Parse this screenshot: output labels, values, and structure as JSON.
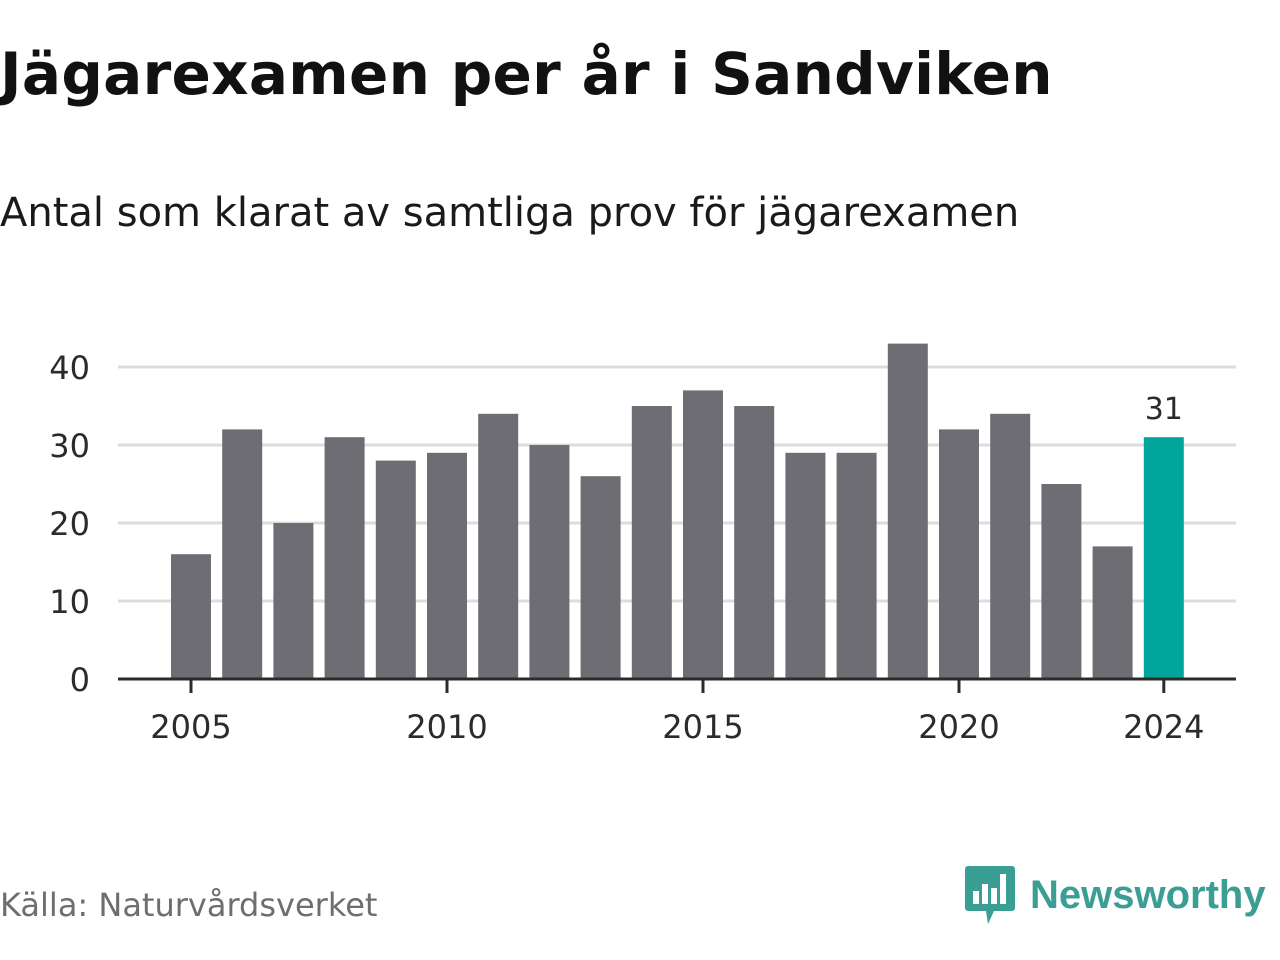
{
  "header": {
    "title": "Jägarexamen per år i Sandviken",
    "subtitle": "Antal som klarat av samtliga prov för jägarexamen"
  },
  "footer": {
    "source": "Källa: Naturvårdsverket",
    "brand": "Newsworthy",
    "brand_icon": "newsworthy-logo-icon"
  },
  "colors": {
    "bar": "#6e6d73",
    "highlight": "#00a69c",
    "grid": "#dcdcdc",
    "axis": "#2b2b2b",
    "brand": "#3a9e94"
  },
  "chart_data": {
    "type": "bar",
    "title": "Jägarexamen per år i Sandviken",
    "subtitle": "Antal som klarat av samtliga prov för jägarexamen",
    "xlabel": "",
    "ylabel": "",
    "categories": [
      2005,
      2006,
      2007,
      2008,
      2009,
      2010,
      2011,
      2012,
      2013,
      2014,
      2015,
      2016,
      2017,
      2018,
      2019,
      2020,
      2021,
      2022,
      2023,
      2024
    ],
    "values": [
      16,
      32,
      20,
      31,
      28,
      29,
      34,
      30,
      26,
      35,
      37,
      35,
      29,
      29,
      43,
      32,
      34,
      25,
      17,
      31
    ],
    "ylim": [
      0,
      43
    ],
    "yticks": [
      0,
      10,
      20,
      30,
      40
    ],
    "xtick_labels": [
      "2005",
      "2010",
      "2015",
      "2020",
      "2024"
    ],
    "highlight": {
      "category": 2024,
      "label": "31"
    },
    "grid": "horizontal"
  }
}
